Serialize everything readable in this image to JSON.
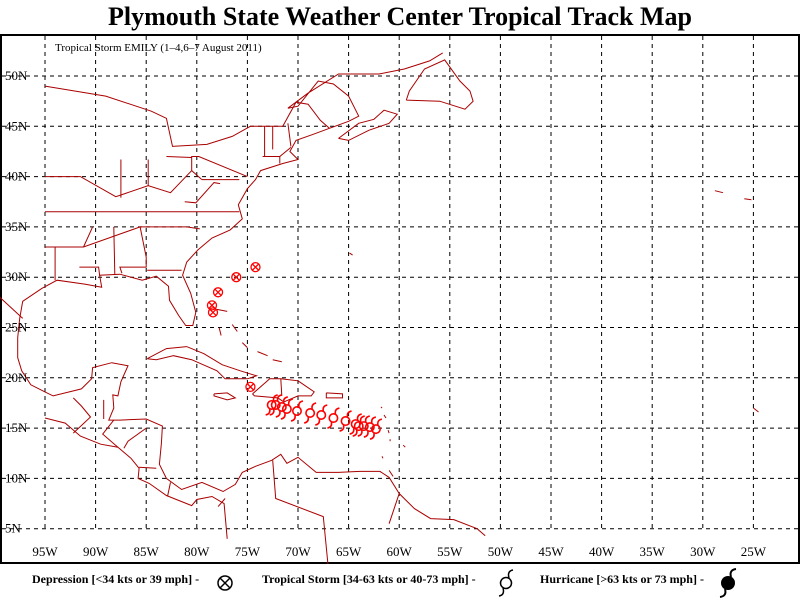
{
  "title": "Plymouth State Weather Center Tropical Track Map",
  "subtitle": "Tropical Storm EMILY (1–4,6–7 August 2011)",
  "lat_labels": [
    "50N",
    "45N",
    "40N",
    "35N",
    "30N",
    "25N",
    "20N",
    "15N",
    "10N",
    "5N"
  ],
  "lon_labels": [
    "95W",
    "90W",
    "85W",
    "80W",
    "75W",
    "70W",
    "65W",
    "60W",
    "55W",
    "50W",
    "45W",
    "40W",
    "35W",
    "30W",
    "25W"
  ],
  "legend": {
    "depression": "Depression [<34 kts or 39 mph] -",
    "tropical_storm": "Tropical Storm [34-63 kts or 40-73 mph] -",
    "hurricane": "Hurricane [>63 kts or 73 mph] -"
  },
  "colors": {
    "track": "#ff0000",
    "land": "#aa0000",
    "grid": "#000000"
  },
  "track": [
    {
      "lat": 15.0,
      "lon": -62.3,
      "type": "tropical_storm"
    },
    {
      "lat": 15.2,
      "lon": -62.9,
      "type": "tropical_storm"
    },
    {
      "lat": 15.3,
      "lon": -63.5,
      "type": "tropical_storm"
    },
    {
      "lat": 15.3,
      "lon": -64.0,
      "type": "tropical_storm"
    },
    {
      "lat": 15.5,
      "lon": -64.3,
      "type": "tropical_storm"
    },
    {
      "lat": 15.8,
      "lon": -65.3,
      "type": "tropical_storm"
    },
    {
      "lat": 16.1,
      "lon": -66.5,
      "type": "tropical_storm"
    },
    {
      "lat": 16.4,
      "lon": -67.7,
      "type": "tropical_storm"
    },
    {
      "lat": 16.6,
      "lon": -68.8,
      "type": "tropical_storm"
    },
    {
      "lat": 16.8,
      "lon": -70.1,
      "type": "tropical_storm"
    },
    {
      "lat": 17.0,
      "lon": -71.1,
      "type": "tropical_storm"
    },
    {
      "lat": 17.2,
      "lon": -71.6,
      "type": "tropical_storm"
    },
    {
      "lat": 17.4,
      "lon": -72.2,
      "type": "tropical_storm"
    },
    {
      "lat": 17.4,
      "lon": -72.6,
      "type": "tropical_storm"
    },
    {
      "lat": 19.1,
      "lon": -74.7,
      "type": "depression"
    },
    {
      "lat": 26.5,
      "lon": -78.4,
      "type": "depression"
    },
    {
      "lat": 27.2,
      "lon": -78.5,
      "type": "depression"
    },
    {
      "lat": 28.5,
      "lon": -77.9,
      "type": "depression"
    },
    {
      "lat": 30.0,
      "lon": -76.1,
      "type": "depression"
    },
    {
      "lat": 31.0,
      "lon": -74.2,
      "type": "depression"
    }
  ]
}
